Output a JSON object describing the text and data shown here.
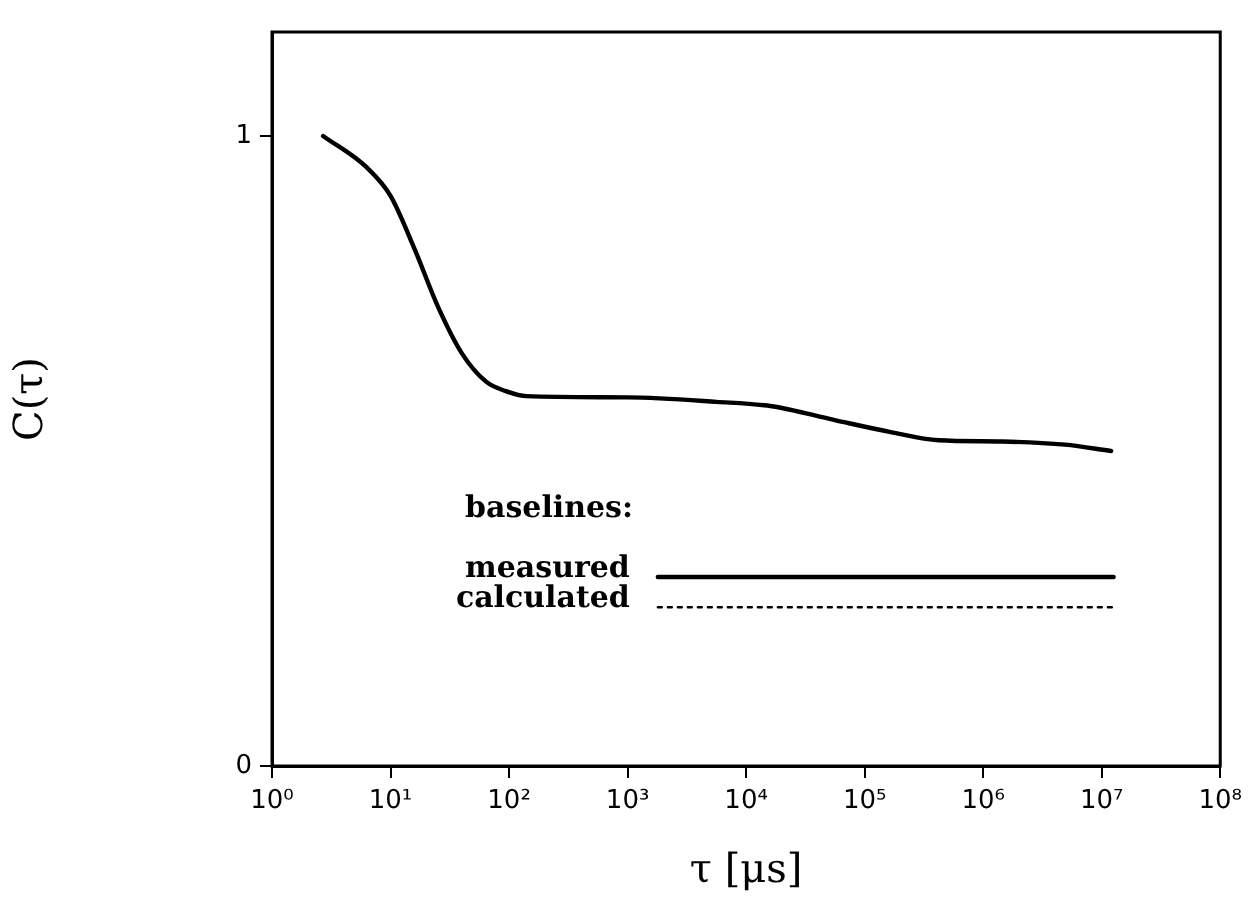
{
  "chart_data": {
    "type": "line",
    "xlabel": "τ [μs]",
    "ylabel": "C(τ)",
    "legend_title": "baselines:",
    "log": "x",
    "grid": false,
    "xlim": [
      1,
      100000000
    ],
    "xticks": [
      {
        "value": 1,
        "label": "10⁰"
      },
      {
        "value": 10,
        "label": "10¹"
      },
      {
        "value": 100,
        "label": "10²"
      },
      {
        "value": 1000,
        "label": "10³"
      },
      {
        "value": 10000,
        "label": "10⁴"
      },
      {
        "value": 100000,
        "label": "10⁵"
      },
      {
        "value": 1000000,
        "label": "10⁶"
      },
      {
        "value": 10000000,
        "label": "10⁷"
      },
      {
        "value": 100000000,
        "label": "10⁸"
      }
    ],
    "ylim": [
      0,
      1.165
    ],
    "yticks": [
      0,
      1
    ],
    "series": [
      {
        "color": "#000000",
        "line_style": "solid",
        "x": [
          2.7,
          6.3,
          10,
          16,
          25,
          40,
          64,
          94,
          140,
          1000,
          5600,
          16500,
          56000,
          166000,
          420000,
          1440000,
          4900000,
          12000000
        ],
        "values": [
          1.0,
          0.95,
          0.905,
          0.82,
          0.73,
          0.655,
          0.61,
          0.595,
          0.587,
          0.585,
          0.578,
          0.571,
          0.549,
          0.53,
          0.517,
          0.515,
          0.51,
          0.5
        ]
      },
      {
        "name": "measured",
        "color": "#000000",
        "line_style": "solid",
        "x": [
          1800,
          12600000
        ],
        "values": [
          0.3,
          0.3
        ]
      },
      {
        "name": "calculated",
        "color": "#000000",
        "line_style": "dotted",
        "x": [
          1800,
          13000000
        ],
        "values": [
          0.252,
          0.252
        ]
      }
    ]
  }
}
